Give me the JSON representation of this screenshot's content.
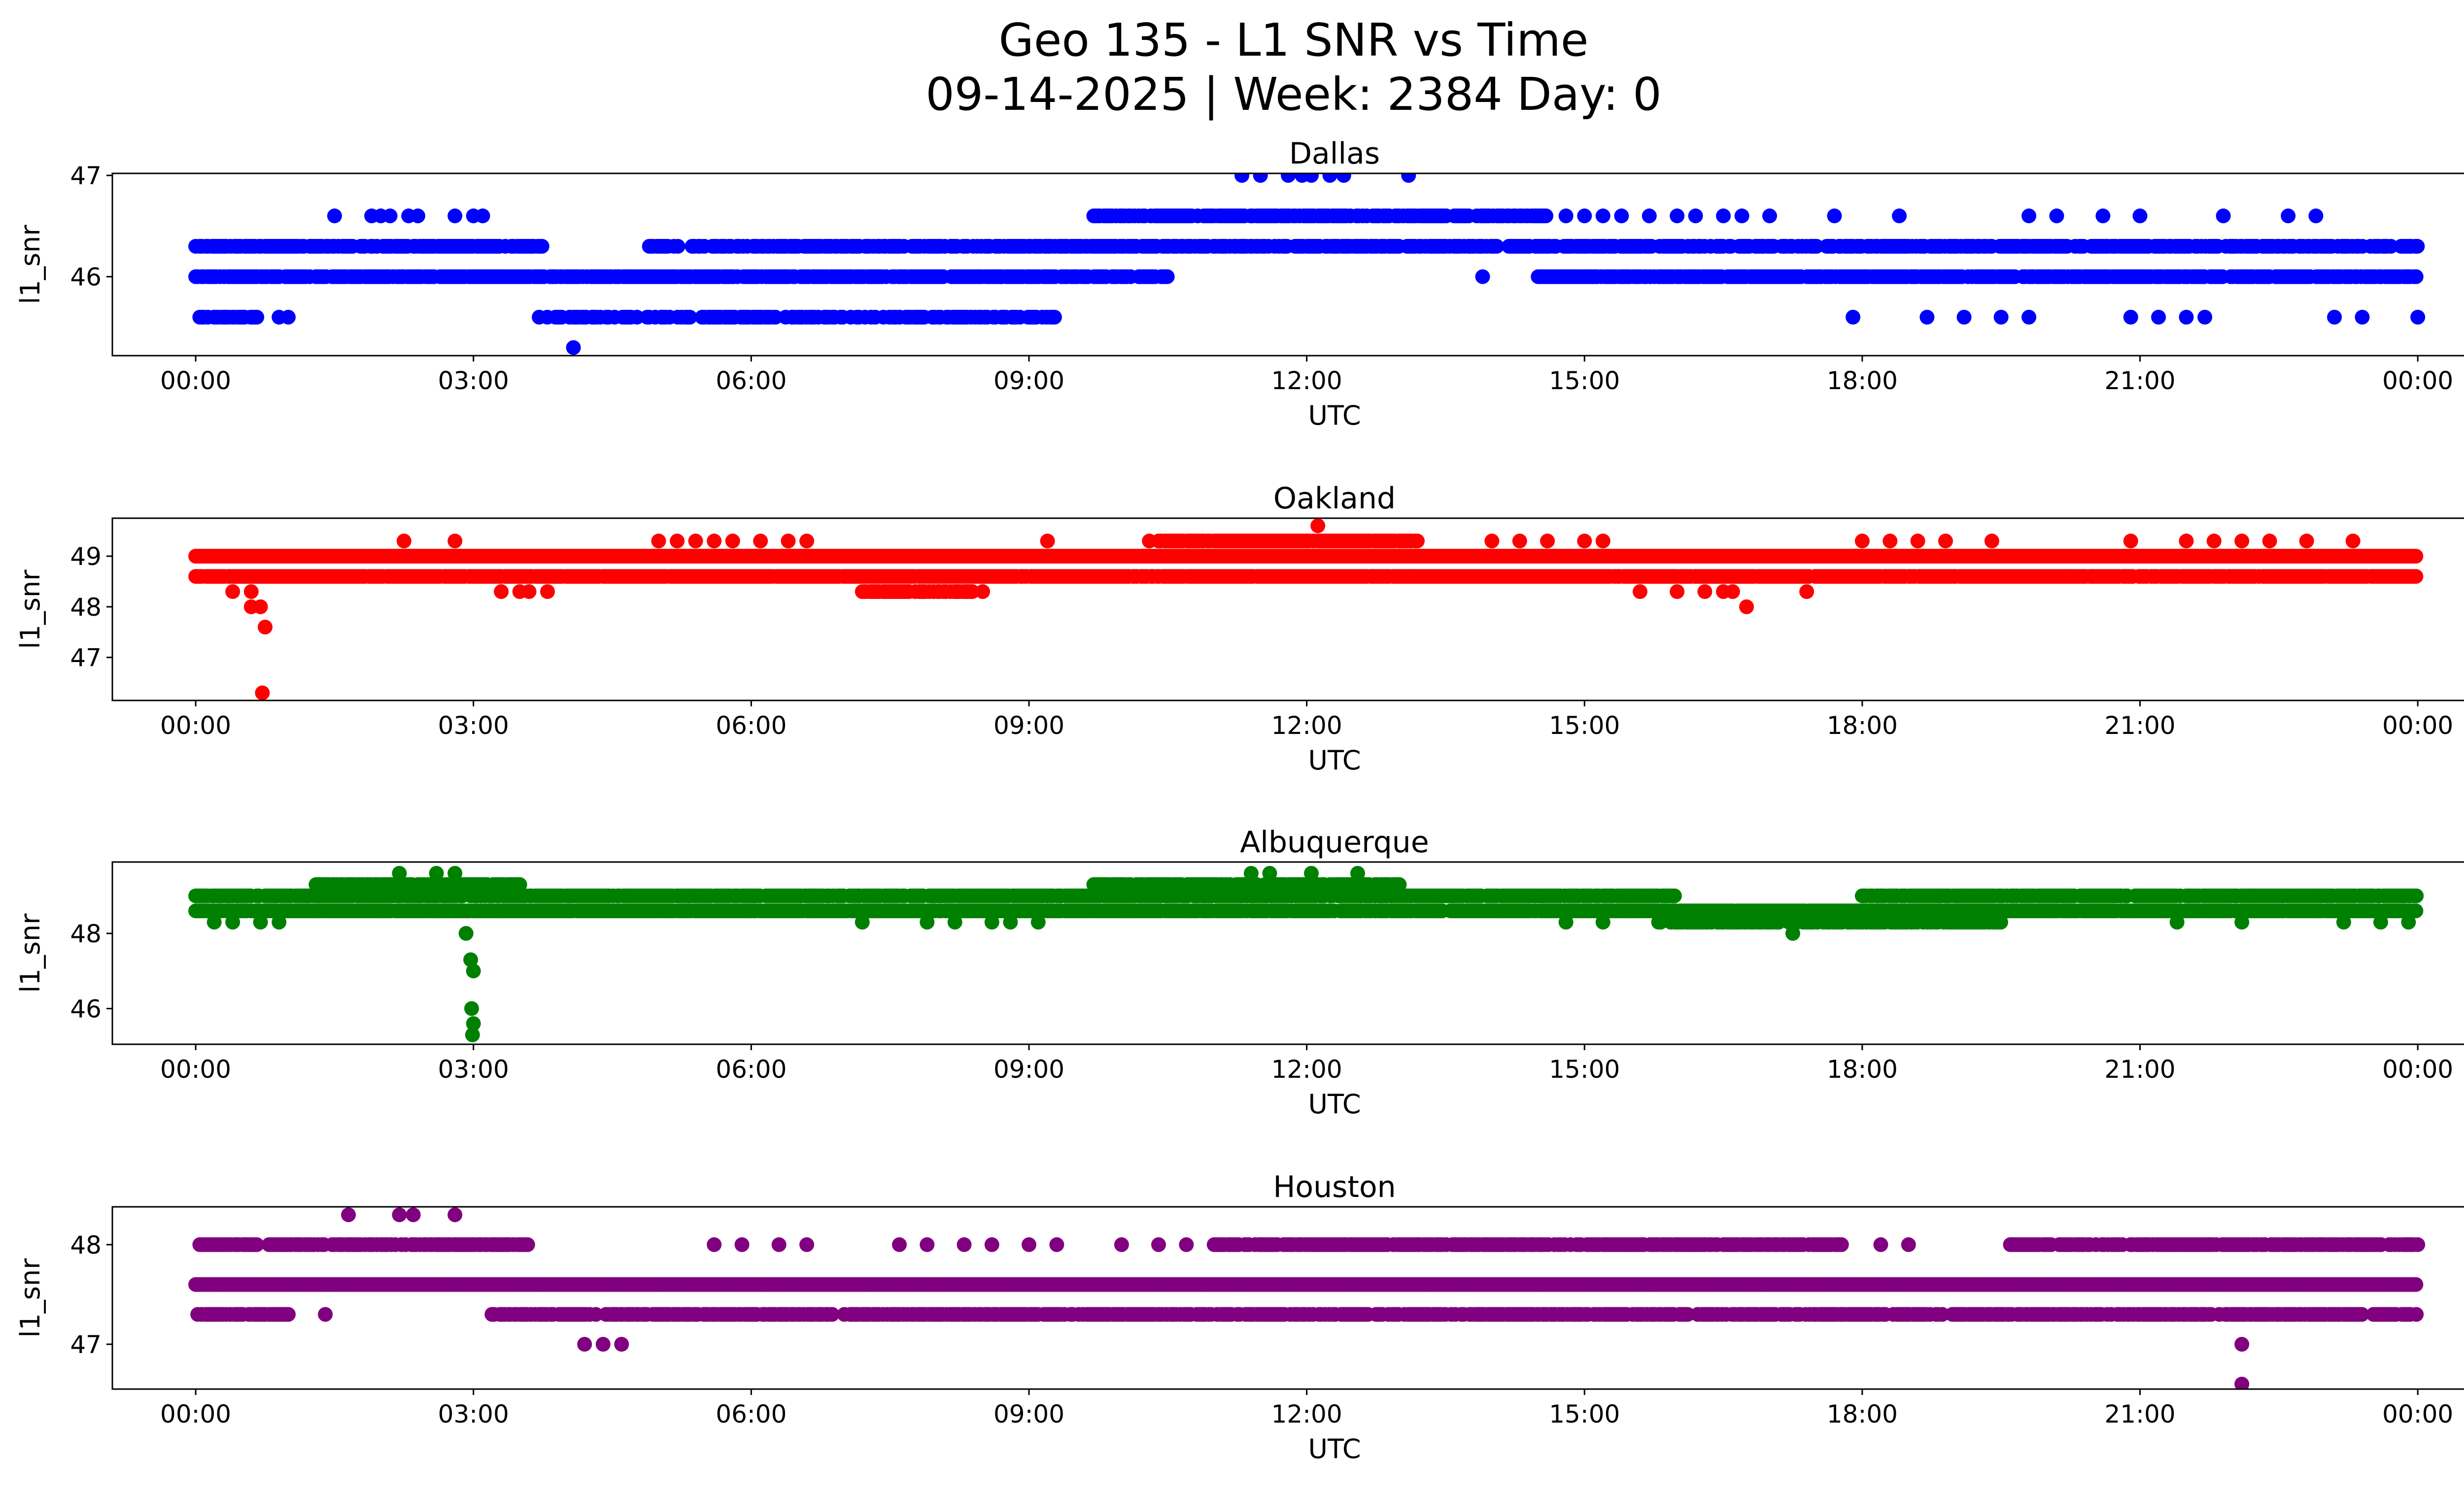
{
  "figure": {
    "title_line1": "Geo 135 - L1 SNR vs Time",
    "title_line2": "09-14-2025 | Week: 2384 Day: 0"
  },
  "chart_data": [
    {
      "type": "scatter",
      "title": "Dallas",
      "xlabel": "UTC",
      "ylabel": "l1_snr",
      "color": "#0000ff",
      "xlim_hours": [
        -0.9,
        25.5
      ],
      "ylim": [
        45.22,
        47.02
      ],
      "xticks": [
        0,
        3,
        6,
        9,
        12,
        15,
        18,
        21,
        24
      ],
      "xtick_labels": [
        "00:00",
        "03:00",
        "06:00",
        "09:00",
        "12:00",
        "15:00",
        "18:00",
        "21:00",
        "00:00"
      ],
      "yticks": [
        46,
        47
      ],
      "ytick_labels": [
        "46",
        "47"
      ],
      "bands": [
        {
          "level": 46.3,
          "segments": [
            [
              0.0,
              3.75
            ],
            [
              4.9,
              24.0
            ]
          ],
          "density": 0.75
        },
        {
          "level": 46.0,
          "segments": [
            [
              0.0,
              10.5
            ],
            [
              14.5,
              24.0
            ]
          ],
          "density": 0.85
        },
        {
          "level": 45.6,
          "segments": [
            [
              0.0,
              0.7
            ],
            [
              3.6,
              9.3
            ]
          ],
          "density": 0.55
        },
        {
          "level": 46.6,
          "segments": [
            [
              9.7,
              14.6
            ]
          ],
          "density": 0.8
        }
      ],
      "points": [
        {
          "x": 0.9,
          "y": 45.6
        },
        {
          "x": 1.0,
          "y": 45.6
        },
        {
          "x": 1.5,
          "y": 46.6
        },
        {
          "x": 1.9,
          "y": 46.6
        },
        {
          "x": 2.0,
          "y": 46.6
        },
        {
          "x": 2.1,
          "y": 46.6
        },
        {
          "x": 2.3,
          "y": 46.6
        },
        {
          "x": 2.4,
          "y": 46.6
        },
        {
          "x": 2.8,
          "y": 46.6
        },
        {
          "x": 3.0,
          "y": 46.6
        },
        {
          "x": 3.1,
          "y": 46.6
        },
        {
          "x": 4.08,
          "y": 45.3
        },
        {
          "x": 13.9,
          "y": 46.0
        },
        {
          "x": 11.3,
          "y": 47.0
        },
        {
          "x": 11.5,
          "y": 47.0
        },
        {
          "x": 11.8,
          "y": 47.0
        },
        {
          "x": 11.95,
          "y": 47.0
        },
        {
          "x": 12.05,
          "y": 47.0
        },
        {
          "x": 12.25,
          "y": 47.0
        },
        {
          "x": 12.4,
          "y": 47.0
        },
        {
          "x": 13.1,
          "y": 47.0
        },
        {
          "x": 14.8,
          "y": 46.6
        },
        {
          "x": 15.0,
          "y": 46.6
        },
        {
          "x": 15.2,
          "y": 46.6
        },
        {
          "x": 15.4,
          "y": 46.6
        },
        {
          "x": 15.7,
          "y": 46.6
        },
        {
          "x": 16.0,
          "y": 46.6
        },
        {
          "x": 16.2,
          "y": 46.6
        },
        {
          "x": 16.5,
          "y": 46.6
        },
        {
          "x": 16.7,
          "y": 46.6
        },
        {
          "x": 17.0,
          "y": 46.6
        },
        {
          "x": 17.7,
          "y": 46.6
        },
        {
          "x": 18.4,
          "y": 46.6
        },
        {
          "x": 19.8,
          "y": 46.6
        },
        {
          "x": 20.1,
          "y": 46.6
        },
        {
          "x": 20.6,
          "y": 46.6
        },
        {
          "x": 21.0,
          "y": 46.6
        },
        {
          "x": 21.9,
          "y": 46.6
        },
        {
          "x": 22.6,
          "y": 46.6
        },
        {
          "x": 22.9,
          "y": 46.6
        },
        {
          "x": 17.9,
          "y": 45.6
        },
        {
          "x": 18.7,
          "y": 45.6
        },
        {
          "x": 19.1,
          "y": 45.6
        },
        {
          "x": 19.5,
          "y": 45.6
        },
        {
          "x": 19.8,
          "y": 45.6
        },
        {
          "x": 20.9,
          "y": 45.6
        },
        {
          "x": 21.2,
          "y": 45.6
        },
        {
          "x": 21.5,
          "y": 45.6
        },
        {
          "x": 21.7,
          "y": 45.6
        },
        {
          "x": 23.1,
          "y": 45.6
        },
        {
          "x": 23.4,
          "y": 45.6
        },
        {
          "x": 24.0,
          "y": 45.6
        }
      ]
    },
    {
      "type": "scatter",
      "title": "Oakland",
      "xlabel": "UTC",
      "ylabel": "l1_snr",
      "color": "#ff0000",
      "xlim_hours": [
        -0.9,
        25.5
      ],
      "ylim": [
        46.15,
        49.75
      ],
      "xticks": [
        0,
        3,
        6,
        9,
        12,
        15,
        18,
        21,
        24
      ],
      "xtick_labels": [
        "00:00",
        "03:00",
        "06:00",
        "09:00",
        "12:00",
        "15:00",
        "18:00",
        "21:00",
        "00:00"
      ],
      "yticks": [
        47,
        48,
        49
      ],
      "ytick_labels": [
        "47",
        "48",
        "49"
      ],
      "bands": [
        {
          "level": 49.0,
          "segments": [
            [
              0.0,
              24.0
            ]
          ],
          "density": 1.0
        },
        {
          "level": 48.6,
          "segments": [
            [
              0.0,
              24.0
            ]
          ],
          "density": 0.95
        },
        {
          "level": 49.3,
          "segments": [
            [
              10.4,
              13.2
            ]
          ],
          "density": 0.9
        },
        {
          "level": 48.3,
          "segments": [
            [
              7.2,
              8.4
            ]
          ],
          "density": 0.8
        }
      ],
      "points": [
        {
          "x": 0.4,
          "y": 48.3
        },
        {
          "x": 0.6,
          "y": 48.3
        },
        {
          "x": 0.7,
          "y": 48.0
        },
        {
          "x": 0.75,
          "y": 47.6
        },
        {
          "x": 0.72,
          "y": 46.3
        },
        {
          "x": 0.6,
          "y": 48.0
        },
        {
          "x": 2.25,
          "y": 49.3
        },
        {
          "x": 2.8,
          "y": 49.3
        },
        {
          "x": 3.3,
          "y": 48.3
        },
        {
          "x": 3.5,
          "y": 48.3
        },
        {
          "x": 3.6,
          "y": 48.3
        },
        {
          "x": 3.8,
          "y": 48.3
        },
        {
          "x": 5.0,
          "y": 49.3
        },
        {
          "x": 5.2,
          "y": 49.3
        },
        {
          "x": 5.4,
          "y": 49.3
        },
        {
          "x": 5.6,
          "y": 49.3
        },
        {
          "x": 5.8,
          "y": 49.3
        },
        {
          "x": 6.1,
          "y": 49.3
        },
        {
          "x": 6.4,
          "y": 49.3
        },
        {
          "x": 6.6,
          "y": 49.3
        },
        {
          "x": 8.3,
          "y": 48.3
        },
        {
          "x": 8.5,
          "y": 48.3
        },
        {
          "x": 9.2,
          "y": 49.3
        },
        {
          "x": 10.3,
          "y": 49.3
        },
        {
          "x": 12.12,
          "y": 49.6
        },
        {
          "x": 12.7,
          "y": 48.6
        },
        {
          "x": 13.1,
          "y": 48.6
        },
        {
          "x": 14.0,
          "y": 49.3
        },
        {
          "x": 14.3,
          "y": 49.3
        },
        {
          "x": 14.6,
          "y": 49.3
        },
        {
          "x": 15.0,
          "y": 49.3
        },
        {
          "x": 15.2,
          "y": 49.3
        },
        {
          "x": 15.6,
          "y": 48.3
        },
        {
          "x": 16.0,
          "y": 48.3
        },
        {
          "x": 16.3,
          "y": 48.3
        },
        {
          "x": 16.5,
          "y": 48.3
        },
        {
          "x": 16.6,
          "y": 48.3
        },
        {
          "x": 16.75,
          "y": 48.0
        },
        {
          "x": 17.4,
          "y": 48.3
        },
        {
          "x": 18.0,
          "y": 49.3
        },
        {
          "x": 18.3,
          "y": 49.3
        },
        {
          "x": 18.6,
          "y": 49.3
        },
        {
          "x": 18.9,
          "y": 49.3
        },
        {
          "x": 19.4,
          "y": 49.3
        },
        {
          "x": 20.9,
          "y": 49.3
        },
        {
          "x": 21.5,
          "y": 49.3
        },
        {
          "x": 21.8,
          "y": 49.3
        },
        {
          "x": 22.1,
          "y": 49.3
        },
        {
          "x": 22.4,
          "y": 49.3
        },
        {
          "x": 22.8,
          "y": 49.3
        },
        {
          "x": 23.3,
          "y": 49.3
        }
      ]
    },
    {
      "type": "scatter",
      "title": "Albuquerque",
      "xlabel": "UTC",
      "ylabel": "l1_snr",
      "color": "#008000",
      "xlim_hours": [
        -0.9,
        25.5
      ],
      "ylim": [
        45.05,
        49.9
      ],
      "xticks": [
        0,
        3,
        6,
        9,
        12,
        15,
        18,
        21,
        24
      ],
      "xtick_labels": [
        "00:00",
        "03:00",
        "06:00",
        "09:00",
        "12:00",
        "15:00",
        "18:00",
        "21:00",
        "00:00"
      ],
      "yticks": [
        46,
        48
      ],
      "ytick_labels": [
        "46",
        "48"
      ],
      "bands": [
        {
          "level": 48.6,
          "segments": [
            [
              0.0,
              24.0
            ]
          ],
          "density": 0.95
        },
        {
          "level": 49.0,
          "segments": [
            [
              0.0,
              16.0
            ],
            [
              18.0,
              24.0
            ]
          ],
          "density": 0.9
        },
        {
          "level": 49.3,
          "segments": [
            [
              1.3,
              3.5
            ],
            [
              9.7,
              13.0
            ]
          ],
          "density": 0.85
        },
        {
          "level": 48.3,
          "segments": [
            [
              15.8,
              19.5
            ]
          ],
          "density": 0.7
        }
      ],
      "points": [
        {
          "x": 2.2,
          "y": 49.6
        },
        {
          "x": 2.6,
          "y": 49.6
        },
        {
          "x": 2.8,
          "y": 49.6
        },
        {
          "x": 11.4,
          "y": 49.6
        },
        {
          "x": 11.6,
          "y": 49.6
        },
        {
          "x": 12.05,
          "y": 49.6
        },
        {
          "x": 12.55,
          "y": 49.6
        },
        {
          "x": 2.95,
          "y": 48.6
        },
        {
          "x": 2.92,
          "y": 48.0
        },
        {
          "x": 2.97,
          "y": 47.3
        },
        {
          "x": 3.0,
          "y": 47.0
        },
        {
          "x": 2.98,
          "y": 46.0
        },
        {
          "x": 3.0,
          "y": 45.6
        },
        {
          "x": 2.99,
          "y": 45.3
        },
        {
          "x": 0.2,
          "y": 48.3
        },
        {
          "x": 0.4,
          "y": 48.3
        },
        {
          "x": 0.7,
          "y": 48.3
        },
        {
          "x": 0.9,
          "y": 48.3
        },
        {
          "x": 7.2,
          "y": 48.3
        },
        {
          "x": 7.9,
          "y": 48.3
        },
        {
          "x": 8.2,
          "y": 48.3
        },
        {
          "x": 8.6,
          "y": 48.3
        },
        {
          "x": 8.8,
          "y": 48.3
        },
        {
          "x": 9.1,
          "y": 48.3
        },
        {
          "x": 14.8,
          "y": 48.3
        },
        {
          "x": 15.2,
          "y": 48.3
        },
        {
          "x": 17.25,
          "y": 48.0
        },
        {
          "x": 21.4,
          "y": 48.3
        },
        {
          "x": 22.1,
          "y": 48.3
        },
        {
          "x": 23.2,
          "y": 48.3
        },
        {
          "x": 23.6,
          "y": 48.3
        },
        {
          "x": 23.9,
          "y": 48.3
        }
      ]
    },
    {
      "type": "scatter",
      "title": "Houston",
      "xlabel": "UTC",
      "ylabel": "l1_snr",
      "color": "#800080",
      "xlim_hours": [
        -0.9,
        25.5
      ],
      "ylim": [
        46.55,
        48.38
      ],
      "xticks": [
        0,
        3,
        6,
        9,
        12,
        15,
        18,
        21,
        24
      ],
      "xtick_labels": [
        "00:00",
        "03:00",
        "06:00",
        "09:00",
        "12:00",
        "15:00",
        "18:00",
        "21:00",
        "00:00"
      ],
      "yticks": [
        47,
        48
      ],
      "ytick_labels": [
        "47",
        "48"
      ],
      "bands": [
        {
          "level": 47.6,
          "segments": [
            [
              0.0,
              24.0
            ]
          ],
          "density": 1.0
        },
        {
          "level": 47.3,
          "segments": [
            [
              0.0,
              1.0
            ],
            [
              3.2,
              23.4
            ],
            [
              23.5,
              24.0
            ]
          ],
          "density": 0.75
        },
        {
          "level": 48.0,
          "segments": [
            [
              0.0,
              3.6
            ],
            [
              11.0,
              17.8
            ],
            [
              19.6,
              24.0
            ]
          ],
          "density": 0.8
        }
      ],
      "points": [
        {
          "x": 1.65,
          "y": 48.3
        },
        {
          "x": 2.2,
          "y": 48.3
        },
        {
          "x": 2.35,
          "y": 48.3
        },
        {
          "x": 2.8,
          "y": 48.3
        },
        {
          "x": 1.4,
          "y": 47.3
        },
        {
          "x": 1.0,
          "y": 47.3
        },
        {
          "x": 4.2,
          "y": 47.0
        },
        {
          "x": 4.4,
          "y": 47.0
        },
        {
          "x": 4.6,
          "y": 47.0
        },
        {
          "x": 5.6,
          "y": 48.0
        },
        {
          "x": 5.9,
          "y": 48.0
        },
        {
          "x": 6.3,
          "y": 48.0
        },
        {
          "x": 6.6,
          "y": 48.0
        },
        {
          "x": 7.6,
          "y": 48.0
        },
        {
          "x": 7.9,
          "y": 48.0
        },
        {
          "x": 8.3,
          "y": 48.0
        },
        {
          "x": 8.6,
          "y": 48.0
        },
        {
          "x": 9.0,
          "y": 48.0
        },
        {
          "x": 9.3,
          "y": 48.0
        },
        {
          "x": 10.0,
          "y": 48.0
        },
        {
          "x": 10.4,
          "y": 48.0
        },
        {
          "x": 10.7,
          "y": 48.0
        },
        {
          "x": 18.2,
          "y": 48.0
        },
        {
          "x": 18.5,
          "y": 48.0
        },
        {
          "x": 22.1,
          "y": 47.0
        },
        {
          "x": 22.1,
          "y": 46.6
        },
        {
          "x": 23.0,
          "y": 47.3
        }
      ]
    }
  ]
}
